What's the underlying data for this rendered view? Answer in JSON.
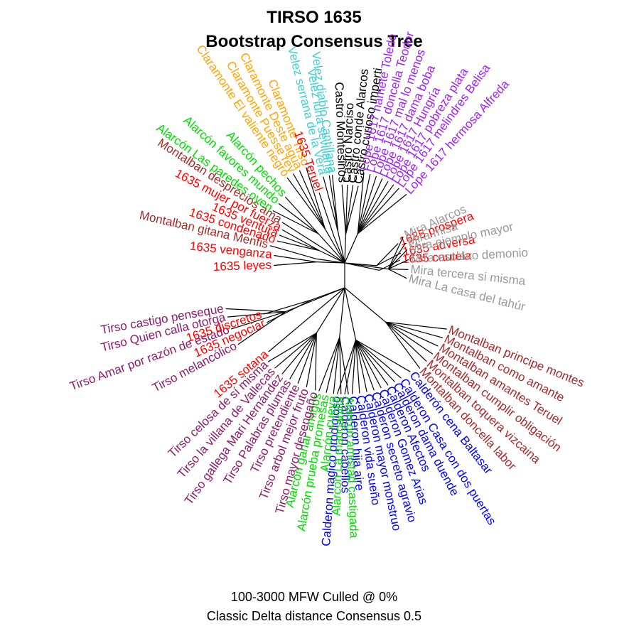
{
  "title": "TIRSO 1635",
  "subtitle": "Bootstrap Consensus Tree",
  "footer": {
    "line1": "100-3000 MFW  Culled @ 0%",
    "line2": "Classic Delta distance Consensus 0.5"
  },
  "colors": {
    "red": "#ff0000",
    "montalban": "#a52a2a",
    "tirso": "#8b1a6b",
    "calderon": "#0000ff",
    "alarcon": "#00dd00",
    "claramonte": "#ffa500",
    "velez": "#40d0d0",
    "castro": "#000000",
    "lope": "#a020f0",
    "mira": "#999999",
    "branch": "#000000"
  },
  "tree": {
    "type": "unrooted bootstrap consensus tree",
    "groups": [
      {
        "key": "red",
        "members": [
          "1635 cautela"
        ]
      },
      {
        "key": "red",
        "members": [
          "1635 adversa",
          "1635 prospera"
        ]
      },
      {
        "key": "mira",
        "members": [
          "Mira La casa del tahúr",
          "Mira tercera si misma",
          "Mira esclavo demonio",
          "Mira ejemplo mayor",
          "Mira misa",
          "Mira Alarcos"
        ]
      },
      {
        "key": "montalban",
        "members": [
          "Montalban doncella labor",
          "Montalban toquera vizcaina",
          "Montalban cumplir obligación",
          "Montalban amantes Teruel",
          "Montalban como amante",
          "Montalban principe montes"
        ]
      },
      {
        "key": "calderon",
        "members": [
          "Calderon Casa con dos puertas",
          "Calderon dama duende",
          "Calderon Afectos",
          "Calderon Gomez Arias",
          "Calderon secreto agravio",
          "Calderon mayor monstruo",
          "Calderon vida sueño",
          "Calderon hija aire",
          "Calderon cabellos",
          "Calderon magico prodigioso",
          "Calderón cena Baltasar"
        ]
      },
      {
        "key": "alarcon",
        "members": [
          "Alarcón amistad castigada",
          "Alarcón La manganilla",
          "Alarcón cueva",
          "Alarcón prueba promesas",
          "Alarcón ganar amigos"
        ]
      },
      {
        "key": "tirso",
        "members": [
          "Tirso mayor desengaño",
          "Tirso arbol mejor fruto",
          "Tirso pretendiente",
          "Tirso Palabras plumas",
          "Tirso gallega Mari Hernández",
          "Tirso la villana de Vallecas",
          "Tirso celosa de sí misma"
        ]
      },
      {
        "key": "red",
        "members": [
          "1635 sotana"
        ]
      },
      {
        "key": "tirso",
        "members": [
          "Tirso melancólico",
          "Tirso Amar por razón de estado",
          "Tirso Quien calla otorga",
          "Tirso castigo penseque"
        ]
      },
      {
        "key": "red",
        "members": [
          "1635 negociar",
          "1635 discretos"
        ]
      },
      {
        "key": "red",
        "members": [
          "1635 leyes",
          "1635 venganza"
        ]
      },
      {
        "key": "montalban",
        "members": [
          "Montalban gitana Menfis"
        ]
      },
      {
        "key": "red",
        "members": [
          "1635 condenado",
          "1635 ventura",
          "1635 mujer por fuerza"
        ]
      },
      {
        "key": "montalban",
        "members": [
          "Montalban desprecios ama"
        ]
      },
      {
        "key": "alarcon",
        "members": [
          "Alarcón Las paredes oyen",
          "Alarcón favores mundo",
          "Alarcón pechos"
        ]
      },
      {
        "key": "claramonte",
        "members": [
          "Claramonte El valiente negro",
          "Claramonte Puesse rey",
          "Claramonte Deste agua",
          "Claramonte Tirso"
        ]
      },
      {
        "key": "red",
        "members": [
          "1635 Teruel"
        ]
      },
      {
        "key": "velez",
        "members": [
          "Velez serrana de la Vera",
          "Velez luna sevillana",
          "Velez diablo Cantillana"
        ]
      },
      {
        "key": "castro",
        "members": [
          "Castro Montesinos",
          "Castro Narciso",
          "Castro conde Alarcos",
          "Castro curioso imperti"
        ]
      },
      {
        "key": "lope",
        "members": [
          "Lope 1617 hamete Toledo",
          "Lope 1617 doncella Teodor",
          "Lope 1617 mal lo menos",
          "Lope 1617 dama boba",
          "Lope 1617 Hungría",
          "Lope 1617 pobreza plata",
          "Lope 1617 melindres Belisa",
          "Lope 1617 hermosa Alfreda"
        ]
      }
    ]
  }
}
